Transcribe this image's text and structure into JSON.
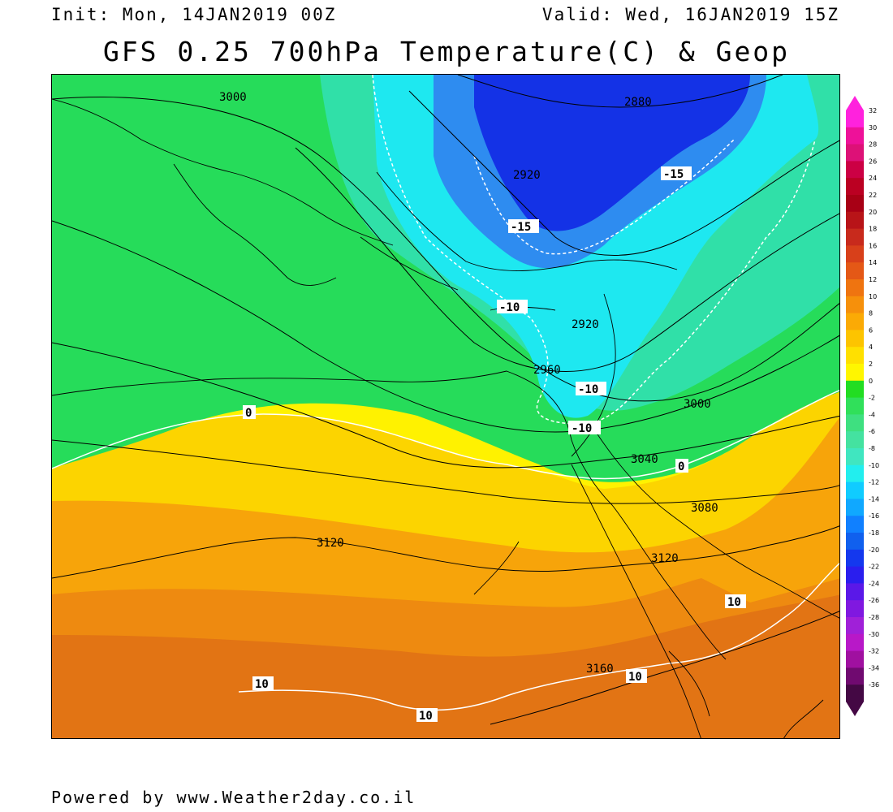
{
  "header": {
    "init": "Init: Mon, 14JAN2019 00Z",
    "valid": "Valid: Wed, 16JAN2019 15Z",
    "title": "GFS 0.25 700hPa Temperature(C) & Geop"
  },
  "footer": "Powered by www.Weather2day.co.il",
  "map": {
    "geopotential_labels": [
      "3000",
      "2880",
      "2920",
      "2920",
      "2960",
      "3000",
      "3040",
      "3080",
      "3120",
      "3120",
      "3160"
    ],
    "temperature_labels": [
      "-15",
      "-15",
      "-10",
      "-10",
      "-10",
      "0",
      "0",
      "10",
      "10",
      "10",
      "10"
    ]
  },
  "colorbar": {
    "labels": [
      "32",
      "30",
      "28",
      "26",
      "24",
      "22",
      "20",
      "18",
      "16",
      "14",
      "12",
      "10",
      "8",
      "6",
      "4",
      "2",
      "0",
      "-2",
      "-4",
      "-6",
      "-8",
      "-10",
      "-12",
      "-14",
      "-16",
      "-18",
      "-20",
      "-22",
      "-24",
      "-26",
      "-28",
      "-30",
      "-32",
      "-34",
      "-36"
    ],
    "colors": [
      "#ff22dd",
      "#ee1199",
      "#dd1177",
      "#cc0044",
      "#bb0022",
      "#a80015",
      "#b81418",
      "#c82a1c",
      "#d8401a",
      "#e45816",
      "#ef7410",
      "#f6900b",
      "#fbaa05",
      "#fdc400",
      "#ffe000",
      "#fff600",
      "#22dd22",
      "#30e05a",
      "#3ee080",
      "#44e2a0",
      "#40e6c0",
      "#22eeee",
      "#10ccff",
      "#10a8ff",
      "#1080ff",
      "#1060ee",
      "#1438ee",
      "#2a1eee",
      "#5a18e8",
      "#8018e0",
      "#a020d8",
      "#b818c8",
      "#a010a0",
      "#700a70",
      "#440844"
    ]
  },
  "colors": {
    "cold_deep": "#1432e6",
    "cold": "#2e8cf0",
    "cyan": "#1ee8f0",
    "teal": "#30e0a8",
    "green": "#26dc5a",
    "yellow": "#fff200",
    "gold": "#fcd400",
    "orange": "#f7a40a",
    "orange_dark": "#ee8a10",
    "orange_deep": "#e27414"
  }
}
